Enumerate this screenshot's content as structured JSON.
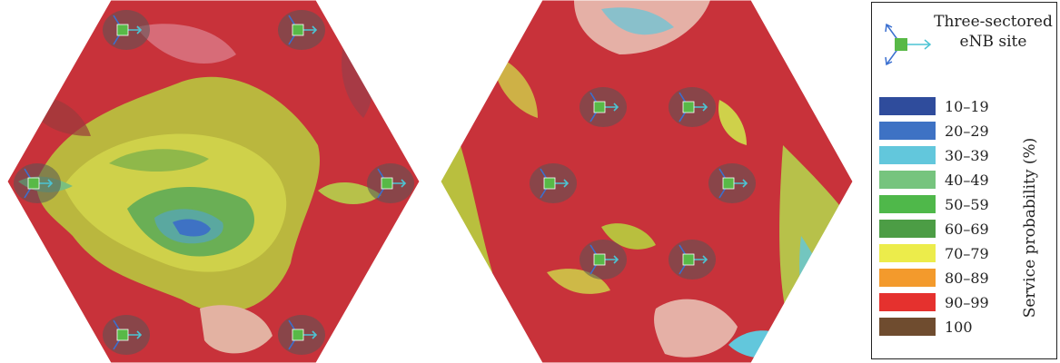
{
  "legend": {
    "site_key": {
      "line1": "Three-sectored",
      "line2": "eNB site"
    },
    "scale_title": "Service probability (%)",
    "scale": [
      {
        "label": "10–19",
        "color": "#2f4c9c"
      },
      {
        "label": "20–29",
        "color": "#3e72c4"
      },
      {
        "label": "30–39",
        "color": "#62c7dc"
      },
      {
        "label": "40–49",
        "color": "#76c47e"
      },
      {
        "label": "50–59",
        "color": "#4fb84a"
      },
      {
        "label": "60–69",
        "color": "#4c9d45"
      },
      {
        "label": "70–79",
        "color": "#ecec4b"
      },
      {
        "label": "80–89",
        "color": "#f39a2c"
      },
      {
        "label": "90–99",
        "color": "#e5312e"
      },
      {
        "label": "100",
        "color": "#6f4c2f"
      }
    ]
  },
  "colors": {
    "site_marker": "#58b947",
    "sector_arrow_cyan": "#4cc4d4",
    "sector_arrow_blue": "#3a6fd0",
    "coverage_red": "#c8323a",
    "coverage_yellow": "#cdcd3c",
    "coverage_green": "#5fa845"
  }
}
